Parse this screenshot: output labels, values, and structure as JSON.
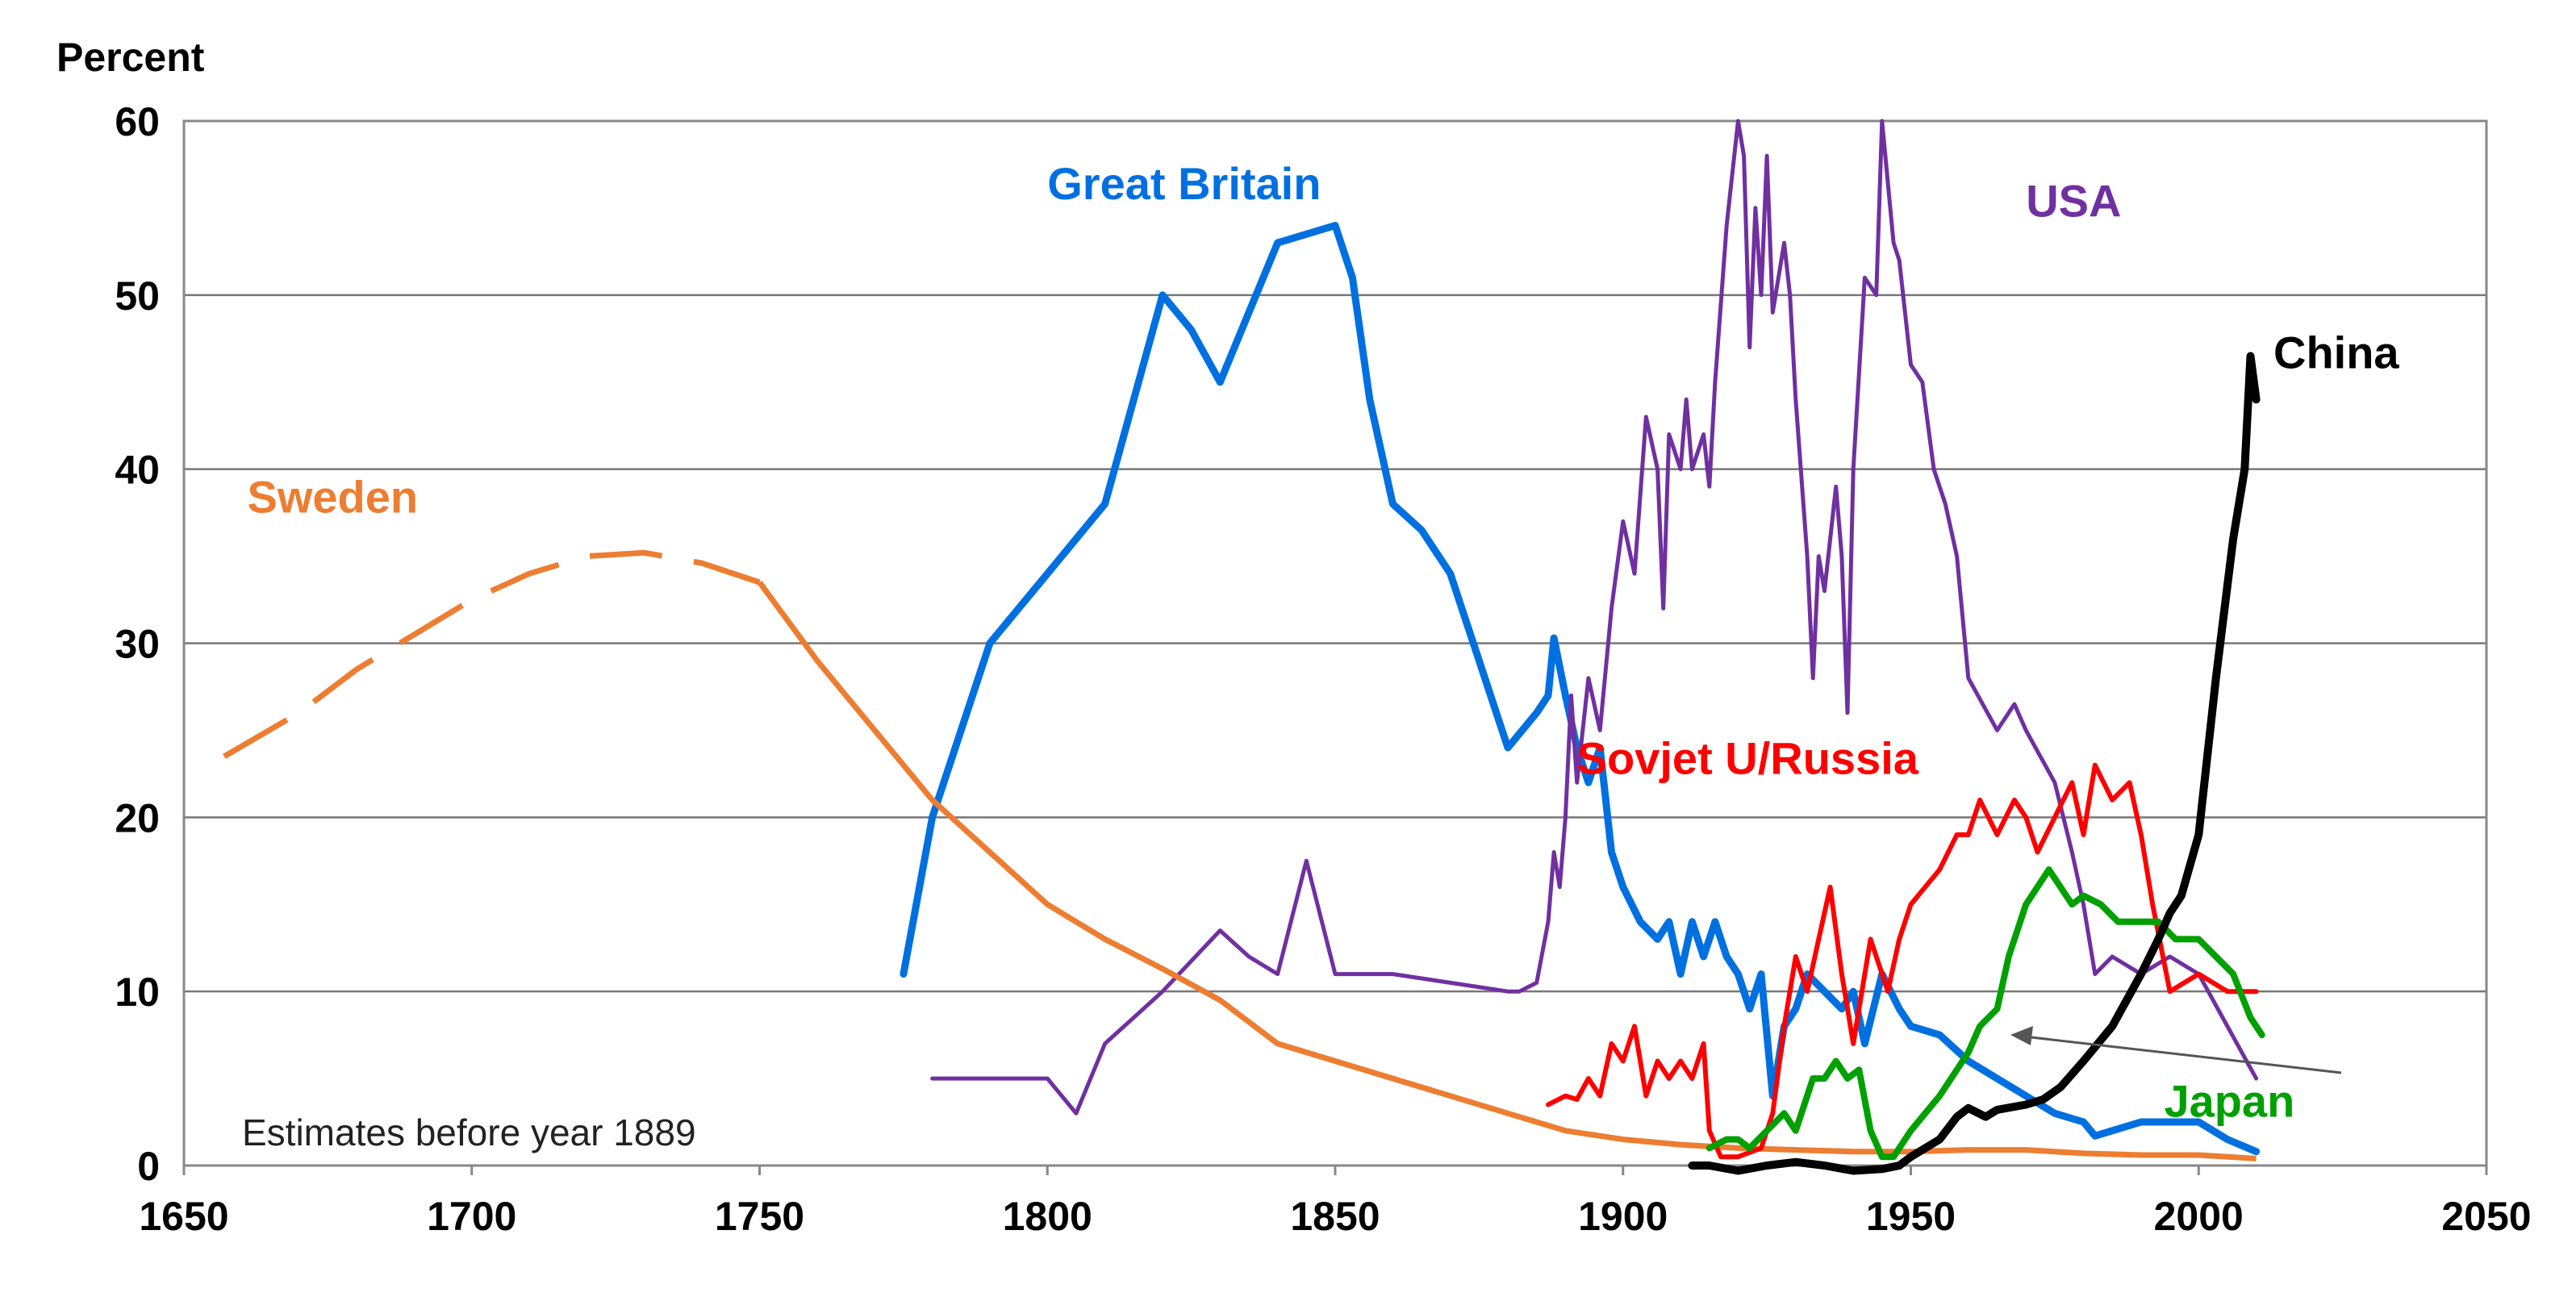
{
  "chart_data": {
    "type": "line",
    "ylabel": "Percent",
    "xlabel": "",
    "xlim": [
      1650,
      2050
    ],
    "ylim": [
      0,
      60
    ],
    "x_ticks": [
      1650,
      1700,
      1750,
      1800,
      1850,
      1900,
      1950,
      2000,
      2050
    ],
    "y_ticks": [
      0,
      10,
      20,
      30,
      40,
      50,
      60
    ],
    "grid": "horizontal",
    "annotation": "Estimates before year 1889",
    "series": [
      {
        "name": "Great Britain",
        "color": "#0070e0",
        "label_pos": [
          1800,
          55.5
        ],
        "points": [
          [
            1775,
            11
          ],
          [
            1780,
            20
          ],
          [
            1790,
            30
          ],
          [
            1800,
            34
          ],
          [
            1805,
            36
          ],
          [
            1810,
            38
          ],
          [
            1815,
            44
          ],
          [
            1820,
            50
          ],
          [
            1825,
            48
          ],
          [
            1830,
            45
          ],
          [
            1835,
            49
          ],
          [
            1840,
            53
          ],
          [
            1845,
            53.5
          ],
          [
            1850,
            54
          ],
          [
            1853,
            51
          ],
          [
            1856,
            44
          ],
          [
            1860,
            38
          ],
          [
            1865,
            36.5
          ],
          [
            1870,
            34
          ],
          [
            1875,
            29
          ],
          [
            1880,
            24
          ],
          [
            1885,
            26
          ],
          [
            1887,
            27
          ],
          [
            1888,
            30.3
          ],
          [
            1890,
            27
          ],
          [
            1892,
            24
          ],
          [
            1894,
            22
          ],
          [
            1896,
            24
          ],
          [
            1898,
            18
          ],
          [
            1900,
            16
          ],
          [
            1903,
            14
          ],
          [
            1906,
            13
          ],
          [
            1908,
            14
          ],
          [
            1910,
            11
          ],
          [
            1912,
            14
          ],
          [
            1914,
            12
          ],
          [
            1916,
            14
          ],
          [
            1918,
            12
          ],
          [
            1920,
            11
          ],
          [
            1922,
            9
          ],
          [
            1924,
            11
          ],
          [
            1926,
            4
          ],
          [
            1928,
            8
          ],
          [
            1930,
            9
          ],
          [
            1932,
            11
          ],
          [
            1935,
            10
          ],
          [
            1938,
            9
          ],
          [
            1940,
            10
          ],
          [
            1942,
            7
          ],
          [
            1945,
            11
          ],
          [
            1948,
            9
          ],
          [
            1950,
            8
          ],
          [
            1955,
            7.5
          ],
          [
            1960,
            6
          ],
          [
            1965,
            5
          ],
          [
            1970,
            4
          ],
          [
            1975,
            3
          ],
          [
            1980,
            2.5
          ],
          [
            1982,
            1.7
          ],
          [
            1990,
            2.5
          ],
          [
            2000,
            2.5
          ],
          [
            2005,
            1.5
          ],
          [
            2010,
            0.8
          ]
        ]
      },
      {
        "name": "USA",
        "color": "#7030a0",
        "label_pos": [
          1970,
          54.5
        ],
        "points": [
          [
            1780,
            5
          ],
          [
            1790,
            5
          ],
          [
            1800,
            5
          ],
          [
            1805,
            3
          ],
          [
            1810,
            7
          ],
          [
            1820,
            10
          ],
          [
            1830,
            13.5
          ],
          [
            1835,
            12
          ],
          [
            1840,
            11
          ],
          [
            1845,
            17.5
          ],
          [
            1850,
            11
          ],
          [
            1860,
            11
          ],
          [
            1870,
            10.5
          ],
          [
            1880,
            10
          ],
          [
            1882,
            10
          ],
          [
            1885,
            10.5
          ],
          [
            1887,
            14
          ],
          [
            1888,
            18
          ],
          [
            1889,
            16
          ],
          [
            1890,
            20
          ],
          [
            1891,
            27
          ],
          [
            1892,
            22
          ],
          [
            1894,
            28
          ],
          [
            1896,
            25
          ],
          [
            1898,
            32
          ],
          [
            1900,
            37
          ],
          [
            1902,
            34
          ],
          [
            1904,
            43
          ],
          [
            1906,
            40
          ],
          [
            1907,
            32
          ],
          [
            1908,
            42
          ],
          [
            1910,
            40
          ],
          [
            1911,
            44
          ],
          [
            1912,
            40
          ],
          [
            1914,
            42
          ],
          [
            1915,
            39
          ],
          [
            1916,
            45
          ],
          [
            1918,
            54
          ],
          [
            1920,
            60
          ],
          [
            1921,
            58
          ],
          [
            1922,
            47
          ],
          [
            1923,
            55
          ],
          [
            1924,
            50
          ],
          [
            1925,
            58
          ],
          [
            1926,
            49
          ],
          [
            1928,
            53
          ],
          [
            1929,
            50
          ],
          [
            1930,
            44
          ],
          [
            1932,
            35
          ],
          [
            1933,
            28
          ],
          [
            1934,
            35
          ],
          [
            1935,
            33
          ],
          [
            1937,
            39
          ],
          [
            1938,
            35
          ],
          [
            1939,
            26
          ],
          [
            1940,
            40
          ],
          [
            1942,
            51
          ],
          [
            1944,
            50
          ],
          [
            1945,
            60
          ],
          [
            1947,
            53
          ],
          [
            1948,
            52
          ],
          [
            1950,
            46
          ],
          [
            1952,
            45
          ],
          [
            1954,
            40
          ],
          [
            1956,
            38
          ],
          [
            1958,
            35
          ],
          [
            1960,
            28
          ],
          [
            1965,
            25
          ],
          [
            1968,
            26.5
          ],
          [
            1970,
            25
          ],
          [
            1975,
            22
          ],
          [
            1978,
            18
          ],
          [
            1980,
            15
          ],
          [
            1982,
            11
          ],
          [
            1985,
            12
          ],
          [
            1990,
            11
          ],
          [
            1995,
            12
          ],
          [
            2000,
            11
          ],
          [
            2005,
            8
          ],
          [
            2010,
            5
          ]
        ]
      },
      {
        "name": "Sweden",
        "color": "#ed7d31",
        "label_pos": [
          1661,
          37.5
        ],
        "estimate_until": 1750,
        "points": [
          [
            1657,
            23.5
          ],
          [
            1670,
            26
          ],
          [
            1680,
            28.5
          ],
          [
            1690,
            30.5
          ],
          [
            1700,
            32.5
          ],
          [
            1710,
            34
          ],
          [
            1720,
            35
          ],
          [
            1730,
            35.2
          ],
          [
            1740,
            34.6
          ],
          [
            1750,
            33.5
          ],
          [
            1760,
            29
          ],
          [
            1770,
            25
          ],
          [
            1780,
            21
          ],
          [
            1790,
            18
          ],
          [
            1800,
            15
          ],
          [
            1810,
            13
          ],
          [
            1820,
            11.3
          ],
          [
            1830,
            9.5
          ],
          [
            1840,
            7
          ],
          [
            1850,
            6
          ],
          [
            1860,
            5
          ],
          [
            1870,
            4
          ],
          [
            1880,
            3
          ],
          [
            1890,
            2
          ],
          [
            1900,
            1.5
          ],
          [
            1910,
            1.2
          ],
          [
            1920,
            1
          ],
          [
            1930,
            0.9
          ],
          [
            1940,
            0.8
          ],
          [
            1950,
            0.8
          ],
          [
            1960,
            0.9
          ],
          [
            1970,
            0.9
          ],
          [
            1980,
            0.7
          ],
          [
            1990,
            0.6
          ],
          [
            2000,
            0.6
          ],
          [
            2010,
            0.4
          ]
        ]
      },
      {
        "name": "Sovjet U/Russia",
        "color": "#ff0000",
        "label_pos": [
          1892,
          22.5
        ],
        "points": [
          [
            1887,
            3.5
          ],
          [
            1890,
            4
          ],
          [
            1892,
            3.8
          ],
          [
            1894,
            5
          ],
          [
            1896,
            4
          ],
          [
            1898,
            7
          ],
          [
            1900,
            6
          ],
          [
            1902,
            8
          ],
          [
            1904,
            4
          ],
          [
            1906,
            6
          ],
          [
            1908,
            5
          ],
          [
            1910,
            6
          ],
          [
            1912,
            5
          ],
          [
            1914,
            7
          ],
          [
            1915,
            2
          ],
          [
            1917,
            0.5
          ],
          [
            1920,
            0.5
          ],
          [
            1924,
            1
          ],
          [
            1926,
            3
          ],
          [
            1928,
            8
          ],
          [
            1930,
            12
          ],
          [
            1932,
            10
          ],
          [
            1934,
            13
          ],
          [
            1936,
            16
          ],
          [
            1938,
            11
          ],
          [
            1940,
            7
          ],
          [
            1941,
            9
          ],
          [
            1943,
            13
          ],
          [
            1946,
            10
          ],
          [
            1948,
            13
          ],
          [
            1950,
            15
          ],
          [
            1955,
            17
          ],
          [
            1958,
            19
          ],
          [
            1960,
            19
          ],
          [
            1962,
            21
          ],
          [
            1965,
            19
          ],
          [
            1968,
            21
          ],
          [
            1970,
            20
          ],
          [
            1972,
            18
          ],
          [
            1975,
            20
          ],
          [
            1978,
            22
          ],
          [
            1980,
            19
          ],
          [
            1982,
            23
          ],
          [
            1985,
            21
          ],
          [
            1988,
            22
          ],
          [
            1990,
            19
          ],
          [
            1992,
            15
          ],
          [
            1995,
            10
          ],
          [
            2000,
            11
          ],
          [
            2005,
            10
          ],
          [
            2010,
            10
          ]
        ]
      },
      {
        "name": "Japan",
        "color": "#00a000",
        "label_pos": [
          1994,
          2.8
        ],
        "points": [
          [
            1915,
            1
          ],
          [
            1918,
            1.5
          ],
          [
            1920,
            1.5
          ],
          [
            1922,
            1
          ],
          [
            1925,
            2
          ],
          [
            1928,
            3
          ],
          [
            1930,
            2
          ],
          [
            1933,
            5
          ],
          [
            1935,
            5
          ],
          [
            1937,
            6
          ],
          [
            1939,
            5
          ],
          [
            1941,
            5.5
          ],
          [
            1943,
            2
          ],
          [
            1945,
            0.5
          ],
          [
            1947,
            0.5
          ],
          [
            1950,
            2
          ],
          [
            1955,
            4
          ],
          [
            1960,
            6.5
          ],
          [
            1962,
            8
          ],
          [
            1965,
            9
          ],
          [
            1967,
            12
          ],
          [
            1970,
            15
          ],
          [
            1972,
            16
          ],
          [
            1974,
            17
          ],
          [
            1976,
            16
          ],
          [
            1978,
            15
          ],
          [
            1980,
            15.5
          ],
          [
            1983,
            15
          ],
          [
            1986,
            14
          ],
          [
            1990,
            14
          ],
          [
            1993,
            14
          ],
          [
            1996,
            13
          ],
          [
            2000,
            13
          ],
          [
            2003,
            12
          ],
          [
            2006,
            11
          ],
          [
            2009,
            8.5
          ],
          [
            2011,
            7.5
          ]
        ]
      },
      {
        "name": "China",
        "color": "#000000",
        "label_pos": [
          2013,
          45.8
        ],
        "points": [
          [
            1912,
            0
          ],
          [
            1915,
            0
          ],
          [
            1920,
            -0.3
          ],
          [
            1925,
            0
          ],
          [
            1930,
            0.2
          ],
          [
            1935,
            0
          ],
          [
            1940,
            -0.3
          ],
          [
            1945,
            -0.2
          ],
          [
            1948,
            0
          ],
          [
            1950,
            0.5
          ],
          [
            1955,
            1.5
          ],
          [
            1958,
            2.8
          ],
          [
            1960,
            3.3
          ],
          [
            1963,
            2.8
          ],
          [
            1965,
            3.2
          ],
          [
            1970,
            3.5
          ],
          [
            1973,
            3.8
          ],
          [
            1976,
            4.5
          ],
          [
            1980,
            6
          ],
          [
            1985,
            8
          ],
          [
            1990,
            11
          ],
          [
            1993,
            13
          ],
          [
            1995,
            14.5
          ],
          [
            1997,
            15.5
          ],
          [
            2000,
            19
          ],
          [
            2003,
            28
          ],
          [
            2006,
            36
          ],
          [
            2008,
            40
          ],
          [
            2009,
            46.5
          ],
          [
            2010,
            44
          ]
        ]
      }
    ]
  }
}
